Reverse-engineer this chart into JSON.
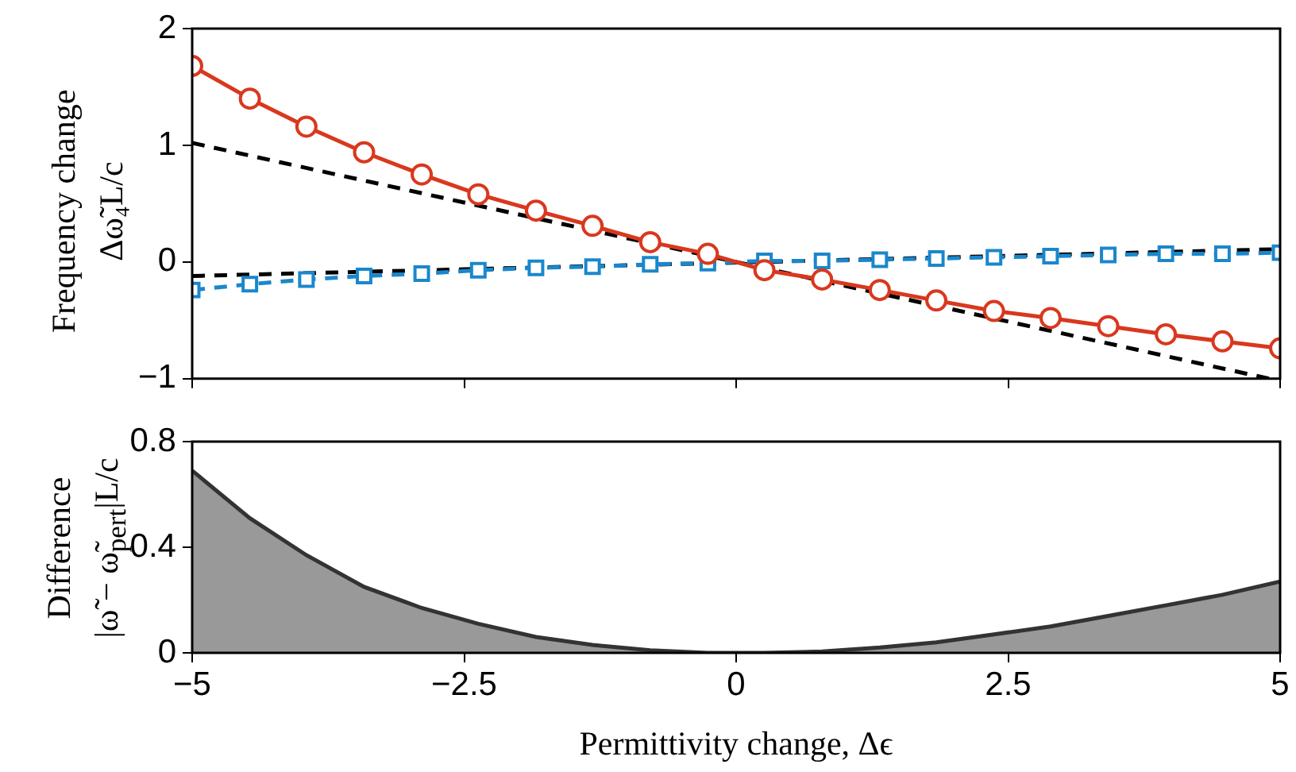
{
  "chart_data": [
    {
      "type": "line",
      "ylabel": "Frequency change\nΔω̃₄L/c",
      "xlim": [
        -5,
        5
      ],
      "xticks": [
        -5,
        -2.5,
        0,
        2.5,
        5
      ],
      "ylim": [
        -1,
        2
      ],
      "yticks": [
        -1,
        0,
        1,
        2
      ],
      "tick_labels": "y",
      "grid": false,
      "x": [
        -5,
        -4.47,
        -3.95,
        -3.42,
        -2.89,
        -2.37,
        -1.84,
        -1.32,
        -0.79,
        -0.26,
        0.26,
        0.79,
        1.32,
        1.84,
        2.37,
        2.89,
        3.42,
        3.95,
        4.47,
        5
      ],
      "series": [
        {
          "color": "#d9381e",
          "marker": "circle",
          "line_style": "solid",
          "values": [
            1.68,
            1.4,
            1.16,
            0.94,
            0.75,
            0.58,
            0.44,
            0.31,
            0.17,
            0.07,
            -0.07,
            -0.15,
            -0.24,
            -0.33,
            -0.42,
            -0.48,
            -0.55,
            -0.62,
            -0.68,
            -0.74
          ]
        },
        {
          "color": "#1a87cc",
          "marker": "square",
          "line_style": "dashed",
          "values": [
            -0.24,
            -0.19,
            -0.15,
            -0.12,
            -0.1,
            -0.07,
            -0.05,
            -0.04,
            -0.02,
            -0.01,
            0.01,
            0.01,
            0.02,
            0.03,
            0.04,
            0.05,
            0.06,
            0.07,
            0.07,
            0.08
          ]
        },
        {
          "color": "#000000",
          "marker": "none",
          "line_style": "dashed",
          "x": [
            -5,
            4.9
          ],
          "values": [
            1.02,
            -1.0
          ]
        },
        {
          "color": "#000000",
          "marker": "none",
          "line_style": "dashed",
          "x": [
            -5,
            5
          ],
          "values": [
            -0.12,
            0.11
          ]
        }
      ]
    },
    {
      "type": "area",
      "ylabel": "Difference\n|ω̃ − ω̃$_{pert}$|L/c",
      "xlabel": "Permittivity change, Δϵ",
      "xlim": [
        -5,
        5
      ],
      "xticks": [
        -5,
        -2.5,
        0,
        2.5,
        5
      ],
      "ylim": [
        0,
        0.8
      ],
      "yticks": [
        0,
        0.4,
        0.8
      ],
      "grid": false,
      "color": "#999999",
      "x": [
        -5,
        -4.47,
        -3.95,
        -3.42,
        -2.89,
        -2.37,
        -1.84,
        -1.32,
        -0.79,
        -0.26,
        0.26,
        0.79,
        1.32,
        1.84,
        2.37,
        2.89,
        3.42,
        3.95,
        4.47,
        5
      ],
      "values": [
        0.69,
        0.51,
        0.37,
        0.25,
        0.17,
        0.11,
        0.06,
        0.03,
        0.01,
        0,
        0,
        0.005,
        0.02,
        0.04,
        0.07,
        0.1,
        0.14,
        0.18,
        0.22,
        0.27
      ]
    }
  ]
}
